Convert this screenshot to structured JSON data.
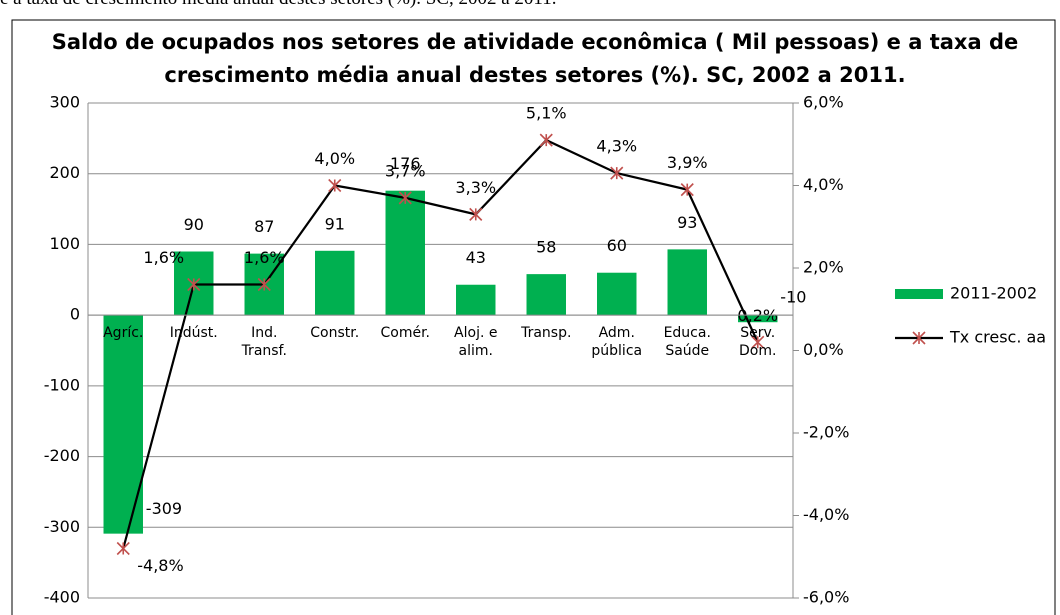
{
  "caption": "e a taxa de crescimento média anual destes setores (%). SC, 2002 a 2011.",
  "chart_data": {
    "type": "bar_line",
    "title": "Saldo de ocupados  nos setores de atividade econômica ( Mil pessoas) e a taxa de crescimento média anual destes setores (%). SC, 2002 a 2011.",
    "categories": [
      "Agríc.",
      "Indúst.",
      "Ind. Transf.",
      "Constr.",
      "Comér.",
      "Aloj. e alim.",
      "Transp.",
      "Adm. pública",
      "Educa. Saúde",
      "Serv. Dom."
    ],
    "series": [
      {
        "name": "2011-2002",
        "color": "#00b050",
        "type": "bar",
        "values": [
          -309,
          90,
          87,
          91,
          176,
          43,
          58,
          60,
          93,
          -10
        ]
      },
      {
        "name": "Tx cresc. aa",
        "color": "#000000",
        "marker_color": "#c0504d",
        "type": "line",
        "axis": "y2",
        "values": [
          -4.8,
          1.6,
          1.6,
          4.0,
          3.7,
          3.3,
          5.1,
          4.3,
          3.9,
          0.2
        ],
        "value_labels": [
          "-4,8%",
          "1,6%",
          "1,6%",
          "4,0%",
          "3,7%",
          "3,3%",
          "5,1%",
          "4,3%",
          "3,9%",
          "0,2%"
        ]
      }
    ],
    "ylim": [
      -400,
      300
    ],
    "yticks": [
      -400,
      -300,
      -200,
      -100,
      0,
      100,
      200,
      300
    ],
    "y2lim": [
      -6,
      6
    ],
    "y2ticks": [
      {
        "value": -6,
        "label": "-6,0%"
      },
      {
        "value": -4,
        "label": "-4,0%"
      },
      {
        "value": -2,
        "label": "-2,0%"
      },
      {
        "value": 0,
        "label": "0,0%"
      },
      {
        "value": 2,
        "label": "2,0%"
      },
      {
        "value": 4,
        "label": "4,0%"
      },
      {
        "value": 6,
        "label": "6,0%"
      }
    ],
    "grid": true,
    "legend": "right"
  }
}
